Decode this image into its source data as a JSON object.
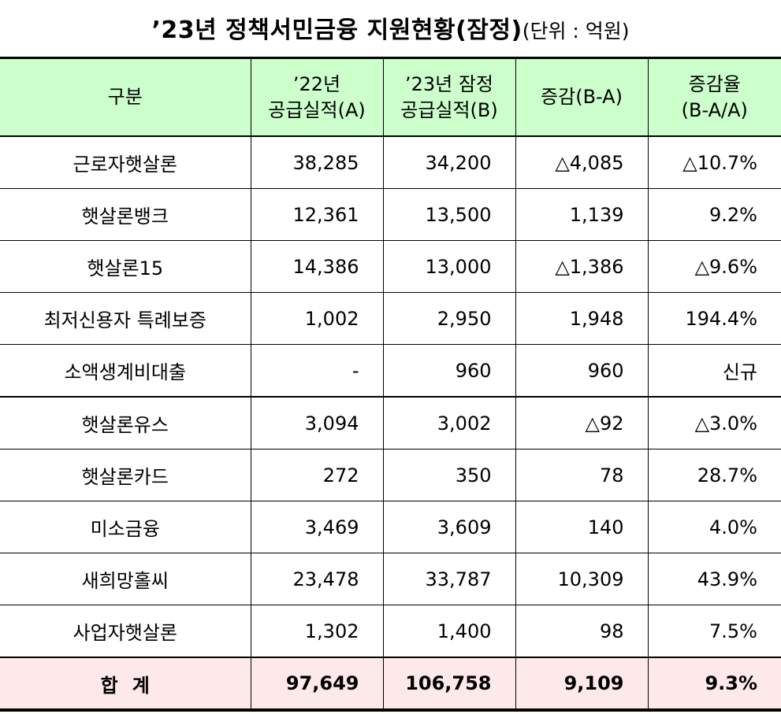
{
  "title": {
    "main": "’23년 정책서민금융 지원현황(잠정)",
    "unit": "(단위 : 억원)"
  },
  "header": {
    "col0": "구분",
    "col1_line1": "’22년",
    "col1_line2": "공급실적(A)",
    "col2_line1": "’23년 잠정",
    "col2_line2": "공급실적(B)",
    "col3": "증감(B-A)",
    "col4_line1": "증감율",
    "col4_line2": "(B-A/A)"
  },
  "rows": [
    {
      "name": "근로자햇살론",
      "a": "38,285",
      "b": "34,200",
      "diff": "△4,085",
      "rate": "△10.7%"
    },
    {
      "name": "햇살론뱅크",
      "a": "12,361",
      "b": "13,500",
      "diff": "1,139",
      "rate": "9.2%"
    },
    {
      "name": "햇살론15",
      "a": "14,386",
      "b": "13,000",
      "diff": "△1,386",
      "rate": "△9.6%"
    },
    {
      "name": "최저신용자 특례보증",
      "a": "1,002",
      "b": "2,950",
      "diff": "1,948",
      "rate": "194.4%"
    },
    {
      "name": "소액생계비대출",
      "a": "-",
      "b": "960",
      "diff": "960",
      "rate": "신규"
    },
    {
      "name": "햇살론유스",
      "a": "3,094",
      "b": "3,002",
      "diff": "△92",
      "rate": "△3.0%"
    },
    {
      "name": "햇살론카드",
      "a": "272",
      "b": "350",
      "diff": "78",
      "rate": "28.7%"
    },
    {
      "name": "미소금융",
      "a": "3,469",
      "b": "3,609",
      "diff": "140",
      "rate": "4.0%"
    },
    {
      "name": "새희망홀씨",
      "a": "23,478",
      "b": "33,787",
      "diff": "10,309",
      "rate": "43.9%"
    },
    {
      "name": "사업자햇살론",
      "a": "1,302",
      "b": "1,400",
      "diff": "98",
      "rate": "7.5%"
    }
  ],
  "total": {
    "name": "합계",
    "a": "97,649",
    "b": "106,758",
    "diff": "9,109",
    "rate": "9.3%"
  },
  "colors": {
    "header_bg": "#ccffcc",
    "total_bg": "#fde9ea"
  }
}
